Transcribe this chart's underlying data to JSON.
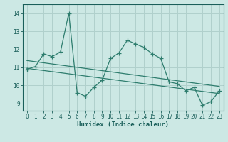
{
  "x": [
    0,
    1,
    2,
    3,
    4,
    5,
    6,
    7,
    8,
    9,
    10,
    11,
    12,
    13,
    14,
    15,
    16,
    17,
    18,
    19,
    20,
    21,
    22,
    23
  ],
  "y": [
    10.9,
    11.05,
    11.75,
    11.6,
    11.85,
    14.0,
    9.6,
    9.4,
    9.9,
    10.3,
    11.5,
    11.8,
    12.5,
    12.3,
    12.1,
    11.75,
    11.5,
    10.2,
    10.1,
    9.7,
    9.9,
    8.9,
    9.1,
    9.7
  ],
  "line_color": "#2e7d6e",
  "bg_color": "#cce8e4",
  "grid_color": "#b0d0cc",
  "text_color": "#1a5f5a",
  "xlabel": "Humidex (Indice chaleur)",
  "ylim": [
    8.6,
    14.5
  ],
  "xlim": [
    -0.5,
    23.5
  ],
  "axis_fontsize": 6.5,
  "tick_fontsize": 5.5,
  "regression_lines": [
    [
      0,
      11.38,
      23,
      9.95
    ],
    [
      0,
      10.95,
      23,
      9.55
    ]
  ]
}
